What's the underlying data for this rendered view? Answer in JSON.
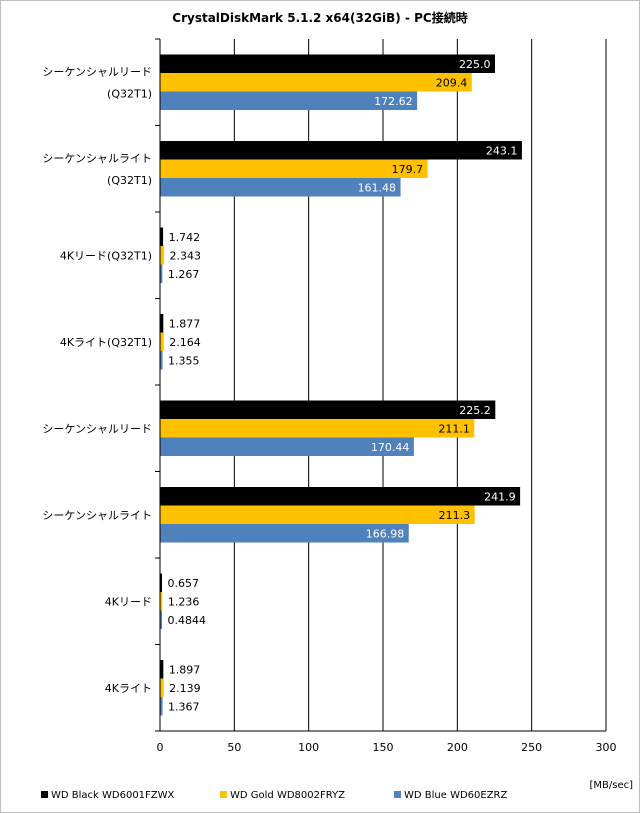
{
  "chart_data": {
    "type": "bar",
    "orientation": "horizontal",
    "title": "CrystalDiskMark 5.1.2 x64(32GiB) - PC接続時",
    "unit_label": "[MB/sec]",
    "xlim": [
      0,
      300
    ],
    "x_ticks": [
      0,
      50,
      100,
      150,
      200,
      250,
      300
    ],
    "grid": true,
    "legend_position": "bottom",
    "categories": [
      "シーケンシャルリード\n(Q32T1)",
      "シーケンシャルライト\n(Q32T1)",
      "4Kリード(Q32T1)",
      "4Kライト(Q32T1)",
      "シーケンシャルリード",
      "シーケンシャルライト",
      "4Kリード",
      "4Kライト"
    ],
    "series": [
      {
        "name": "WD Black WD6001FZWX",
        "color": "#000000",
        "values": [
          225.0,
          243.1,
          1.742,
          1.877,
          225.2,
          241.9,
          0.657,
          1.897
        ],
        "labels": [
          "225.0",
          "243.1",
          "1.742",
          "1.877",
          "225.2",
          "241.9",
          "0.657",
          "1.897"
        ]
      },
      {
        "name": "WD Gold WD8002FRYZ",
        "color": "#FFC000",
        "values": [
          209.4,
          179.7,
          2.343,
          2.164,
          211.1,
          211.3,
          1.236,
          2.139
        ],
        "labels": [
          "209.4",
          "179.7",
          "2.343",
          "2.164",
          "211.1",
          "211.3",
          "1.236",
          "2.139"
        ]
      },
      {
        "name": "WD Blue WD60EZRZ",
        "color": "#4F81BD",
        "values": [
          172.62,
          161.48,
          1.267,
          1.355,
          170.44,
          166.98,
          0.4844,
          1.367
        ],
        "labels": [
          "172.62",
          "161.48",
          "1.267",
          "1.355",
          "170.44",
          "166.98",
          "0.4844",
          "1.367"
        ]
      }
    ]
  }
}
